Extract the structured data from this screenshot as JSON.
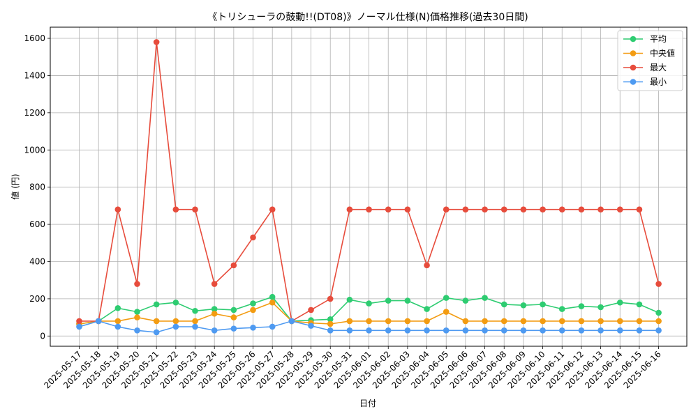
{
  "chart_data": {
    "type": "line",
    "title": "《トリシューラの鼓動!!(DT08)》ノーマル仕様(N)価格推移(過去30日間)",
    "xlabel": "日付",
    "ylabel": "値 (円)",
    "ylim": [
      -55,
      1660
    ],
    "yticks": [
      0,
      200,
      400,
      600,
      800,
      1000,
      1200,
      1400,
      1600
    ],
    "grid": true,
    "legend_position": "top-right",
    "categories": [
      "2025-05-17",
      "2025-05-18",
      "2025-05-19",
      "2025-05-20",
      "2025-05-21",
      "2025-05-22",
      "2025-05-23",
      "2025-05-24",
      "2025-05-25",
      "2025-05-26",
      "2025-05-27",
      "2025-05-28",
      "2025-05-29",
      "2025-05-30",
      "2025-05-31",
      "2025-06-01",
      "2025-06-02",
      "2025-06-03",
      "2025-06-04",
      "2025-06-05",
      "2025-06-06",
      "2025-06-07",
      "2025-06-08",
      "2025-06-09",
      "2025-06-10",
      "2025-06-11",
      "2025-06-12",
      "2025-06-13",
      "2025-06-14",
      "2025-06-15",
      "2025-06-16"
    ],
    "series": [
      {
        "name": "平均",
        "color": "#2ecc71",
        "values": [
          65,
          80,
          150,
          130,
          170,
          180,
          135,
          145,
          140,
          175,
          210,
          80,
          85,
          90,
          195,
          175,
          190,
          190,
          145,
          205,
          190,
          205,
          170,
          165,
          170,
          145,
          160,
          155,
          180,
          170,
          125
        ]
      },
      {
        "name": "中央値",
        "color": "#f39c12",
        "values": [
          65,
          80,
          80,
          100,
          80,
          80,
          80,
          120,
          100,
          140,
          180,
          80,
          70,
          65,
          80,
          80,
          80,
          80,
          80,
          130,
          80,
          80,
          80,
          80,
          80,
          80,
          80,
          80,
          80,
          80,
          80
        ]
      },
      {
        "name": "最大",
        "color": "#e74c3c",
        "values": [
          80,
          80,
          680,
          280,
          1580,
          680,
          680,
          280,
          380,
          530,
          680,
          80,
          140,
          200,
          680,
          680,
          680,
          680,
          380,
          680,
          680,
          680,
          680,
          680,
          680,
          680,
          680,
          680,
          680,
          680,
          280
        ]
      },
      {
        "name": "最小",
        "color": "#4e9af1",
        "values": [
          50,
          80,
          50,
          30,
          20,
          50,
          50,
          30,
          40,
          45,
          50,
          80,
          55,
          30,
          30,
          30,
          30,
          30,
          30,
          30,
          30,
          30,
          30,
          30,
          30,
          30,
          30,
          30,
          30,
          30,
          30
        ]
      }
    ]
  }
}
